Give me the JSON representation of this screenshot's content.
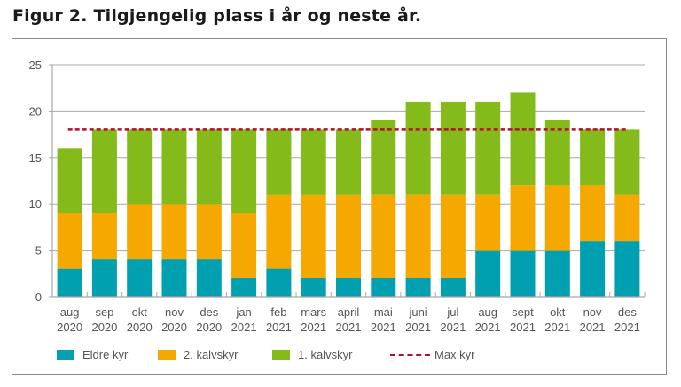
{
  "title": "Figur 2. Tilgjengelig plass i år og neste år.",
  "chart_data": {
    "type": "bar",
    "stacked": true,
    "title": "Figur 2. Tilgjengelig plass i år og neste år.",
    "xlabel": "",
    "ylabel": "",
    "ylim": [
      0,
      25
    ],
    "yticks": [
      0,
      5,
      10,
      15,
      20,
      25
    ],
    "grid": true,
    "legend_position": "bottom",
    "categories": [
      [
        "aug",
        "2020"
      ],
      [
        "sep",
        "2020"
      ],
      [
        "okt",
        "2020"
      ],
      [
        "nov",
        "2020"
      ],
      [
        "des",
        "2020"
      ],
      [
        "jan",
        "2021"
      ],
      [
        "feb",
        "2021"
      ],
      [
        "mars",
        "2021"
      ],
      [
        "april",
        "2021"
      ],
      [
        "mai",
        "2021"
      ],
      [
        "juni",
        "2021"
      ],
      [
        "jul",
        "2021"
      ],
      [
        "aug",
        "2021"
      ],
      [
        "sept",
        "2021"
      ],
      [
        "okt",
        "2021"
      ],
      [
        "nov",
        "2021"
      ],
      [
        "des",
        "2021"
      ]
    ],
    "series": [
      {
        "name": "Eldre kyr",
        "color": "#00a0b0",
        "values": [
          3,
          4,
          4,
          4,
          4,
          2,
          3,
          2,
          2,
          2,
          2,
          2,
          5,
          5,
          5,
          6,
          6
        ]
      },
      {
        "name": "2. kalvskyr",
        "color": "#f5a800",
        "values": [
          6,
          5,
          6,
          6,
          6,
          7,
          8,
          9,
          9,
          9,
          9,
          9,
          6,
          7,
          7,
          6,
          5
        ]
      },
      {
        "name": "1. kalvskyr",
        "color": "#84bb1a",
        "values": [
          7,
          9,
          8,
          8,
          8,
          9,
          7,
          7,
          7,
          8,
          10,
          10,
          10,
          10,
          7,
          6,
          7
        ]
      }
    ],
    "reference_lines": [
      {
        "name": "Max kyr",
        "value": 18,
        "color": "#b0122b",
        "style": "dashed"
      }
    ]
  }
}
